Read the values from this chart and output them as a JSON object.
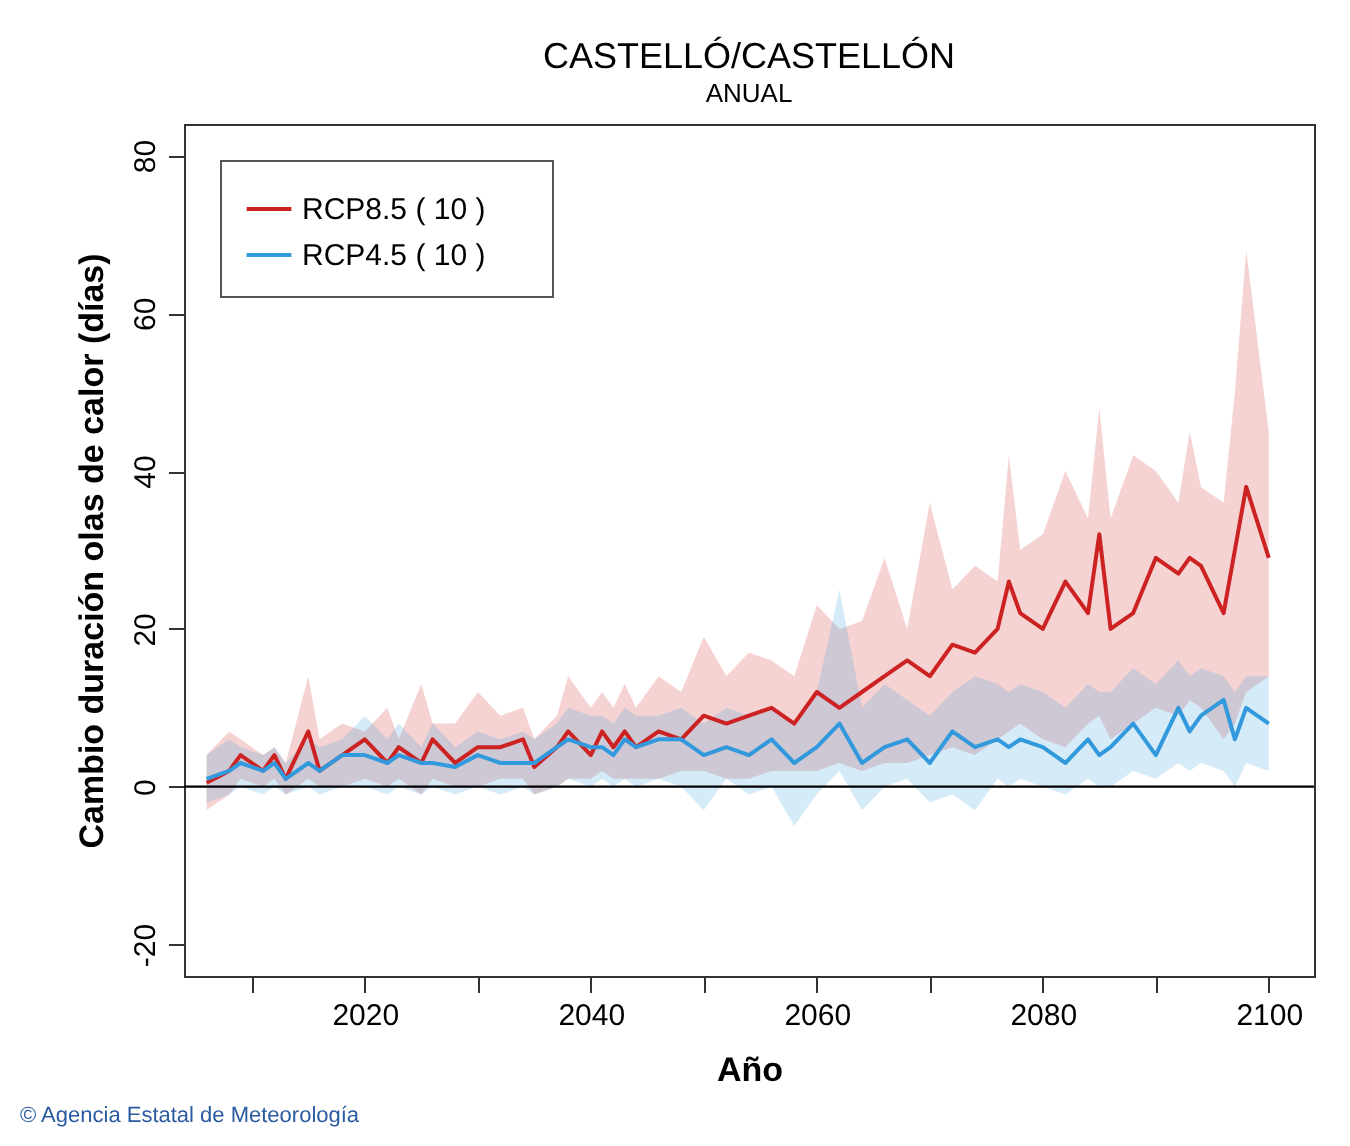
{
  "chart_data": {
    "type": "line",
    "title": "CASTELLÓ/CASTELLÓN",
    "subtitle": "ANUAL",
    "xlabel": "Año",
    "ylabel": "Cambio duración olas de calor (días)",
    "x": [
      2006,
      2008,
      2009,
      2011,
      2012,
      2013,
      2015,
      2016,
      2018,
      2020,
      2022,
      2023,
      2025,
      2026,
      2028,
      2030,
      2032,
      2034,
      2035,
      2037,
      2038,
      2040,
      2041,
      2042,
      2043,
      2044,
      2046,
      2048,
      2050,
      2052,
      2054,
      2056,
      2058,
      2060,
      2062,
      2064,
      2066,
      2068,
      2070,
      2072,
      2074,
      2076,
      2077,
      2078,
      2080,
      2082,
      2084,
      2085,
      2086,
      2088,
      2090,
      2092,
      2093,
      2094,
      2096,
      2097,
      2098,
      2100
    ],
    "series": [
      {
        "name": "RCP8.5      ( 10 )",
        "color": "#cc2222",
        "values": [
          0.5,
          2,
          4,
          2,
          4,
          1,
          7,
          2,
          4,
          6,
          3,
          5,
          3,
          6,
          3,
          5,
          5,
          6,
          2.5,
          5,
          7,
          4,
          7,
          5,
          7,
          5,
          7,
          6,
          9,
          8,
          9,
          10,
          8,
          12,
          10,
          12,
          14,
          16,
          14,
          18,
          17,
          20,
          26,
          22,
          20,
          26,
          22,
          32,
          20,
          22,
          29,
          27,
          29,
          28,
          22,
          30,
          38,
          29
        ],
        "lower": [
          -3,
          -1,
          1,
          0,
          1,
          -1,
          1,
          0,
          0,
          1,
          0,
          1,
          -1,
          1,
          0,
          0,
          1,
          1,
          -1,
          0,
          1,
          1,
          2,
          1,
          1,
          1,
          1,
          2,
          2,
          1,
          1,
          2,
          2,
          2,
          3,
          2,
          3,
          3,
          4,
          5,
          4,
          6,
          7,
          8,
          6,
          5,
          8,
          9,
          6,
          8,
          10,
          9,
          11,
          10,
          6,
          8,
          12,
          14
        ],
        "upper": [
          4,
          7,
          6,
          4,
          5,
          3,
          14,
          6,
          8,
          7,
          10,
          6,
          13,
          8,
          8,
          12,
          9,
          10,
          6,
          9,
          14,
          10,
          12,
          10,
          13,
          10,
          14,
          12,
          19,
          14,
          17,
          16,
          14,
          23,
          20,
          21,
          29,
          20,
          36,
          25,
          28,
          26,
          42,
          30,
          32,
          40,
          34,
          48,
          34,
          42,
          40,
          36,
          45,
          38,
          36,
          50,
          68,
          45
        ]
      },
      {
        "name": "RCP4.5      ( 10 )",
        "color": "#3399dd",
        "values": [
          1,
          2,
          3,
          2,
          3,
          1,
          3,
          2,
          4,
          4,
          3,
          4,
          3,
          3,
          2.5,
          4,
          3,
          3,
          3,
          5,
          6,
          5,
          5,
          4,
          6,
          5,
          6,
          6,
          4,
          5,
          4,
          6,
          3,
          5,
          8,
          3,
          5,
          6,
          3,
          7,
          5,
          6,
          5,
          6,
          5,
          3,
          6,
          4,
          5,
          8,
          4,
          10,
          7,
          9,
          11,
          6,
          10,
          8
        ],
        "lower": [
          -2,
          -1,
          0,
          -1,
          0,
          -1,
          0,
          -1,
          0,
          0,
          -1,
          0,
          -1,
          0,
          -1,
          0,
          -1,
          0,
          -1,
          0,
          1,
          0,
          1,
          0,
          1,
          0,
          1,
          0,
          -3,
          1,
          -1,
          0,
          -5,
          -1,
          2,
          -3,
          0,
          1,
          -2,
          -1,
          -3,
          1,
          0,
          1,
          0,
          -1,
          1,
          0,
          0,
          2,
          1,
          3,
          2,
          3,
          2,
          0,
          3,
          2
        ],
        "upper": [
          4,
          6,
          5,
          4,
          5,
          3,
          6,
          5,
          6,
          9,
          6,
          8,
          5,
          8,
          5,
          7,
          6,
          7,
          6,
          8,
          10,
          9,
          9,
          8,
          10,
          9,
          9,
          10,
          8,
          10,
          9,
          10,
          8,
          12,
          25,
          10,
          13,
          11,
          9,
          12,
          14,
          13,
          12,
          13,
          12,
          10,
          13,
          12,
          12,
          15,
          13,
          16,
          14,
          15,
          14,
          12,
          14,
          14
        ]
      }
    ],
    "xlim": [
      2004,
      2104
    ],
    "ylim": [
      -24,
      84
    ],
    "xticks": [
      {
        "value": 2010,
        "label": null
      },
      2020,
      {
        "value": 2030,
        "label": null
      },
      2040,
      {
        "value": 2050,
        "label": null
      },
      2060,
      {
        "value": 2070,
        "label": null
      },
      2080,
      {
        "value": 2090,
        "label": null
      },
      2100
    ],
    "yticks": [
      -20,
      0,
      20,
      40,
      60,
      80
    ],
    "ref_lines": [
      {
        "axis": "y",
        "value": 0,
        "color": "#000000"
      }
    ],
    "legend": "top left",
    "grid": false,
    "marker": "none",
    "line_style": "solid",
    "annotations": [
      "© Agencia Estatal de Meteorología"
    ]
  }
}
